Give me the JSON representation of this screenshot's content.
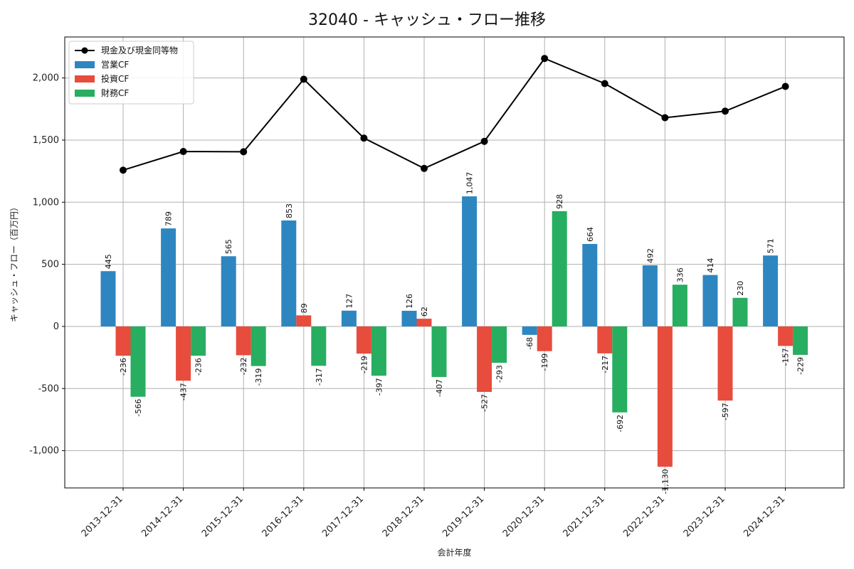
{
  "chart_data": {
    "type": "bar",
    "title": "32040 - キャッシュ・フロー推移",
    "xlabel": "会計年度",
    "ylabel": "キャッシュ・フロー（百万円）",
    "categories": [
      "2013-12-31",
      "2014-12-31",
      "2015-12-31",
      "2016-12-31",
      "2017-12-31",
      "2018-12-31",
      "2019-12-31",
      "2020-12-31",
      "2021-12-31",
      "2022-12-31",
      "2023-12-31",
      "2024-12-31"
    ],
    "series": [
      {
        "name": "営業CF",
        "kind": "bar",
        "color": "#2e86c1",
        "values": [
          445,
          789,
          565,
          853,
          127,
          126,
          1047,
          -68,
          664,
          492,
          414,
          571
        ],
        "labels": [
          "445",
          "789",
          "565",
          "853",
          "127",
          "126",
          "1,047",
          "-68",
          "664",
          "492",
          "414",
          "571"
        ]
      },
      {
        "name": "投資CF",
        "kind": "bar",
        "color": "#e74c3c",
        "values": [
          -236,
          -437,
          -232,
          89,
          -219,
          62,
          -527,
          -199,
          -217,
          -1130,
          -597,
          -157
        ],
        "labels": [
          "-236",
          "-437",
          "-232",
          "89",
          "-219",
          "62",
          "-527",
          "-199",
          "-217",
          "-1,130",
          "-597",
          "-157"
        ]
      },
      {
        "name": "財務CF",
        "kind": "bar",
        "color": "#27ae60",
        "values": [
          -566,
          -236,
          -319,
          -317,
          -397,
          -407,
          -293,
          928,
          -692,
          336,
          230,
          -229
        ],
        "labels": [
          "-566",
          "-236",
          "-319",
          "-317",
          "-397",
          "-407",
          "-293",
          "928",
          "-692",
          "336",
          "230",
          "-229"
        ]
      },
      {
        "name": "現金及び現金同等物",
        "kind": "line",
        "color": "#000000",
        "values": [
          1258,
          1408,
          1406,
          1990,
          1516,
          1272,
          1490,
          2157,
          1955,
          1680,
          1733,
          1932
        ]
      }
    ],
    "ylim": [
      -1300,
      2330
    ],
    "yticks": [
      -1000,
      -500,
      0,
      500,
      1000,
      1500,
      2000
    ],
    "ytick_labels": [
      "-1,000",
      "-500",
      "0",
      "500",
      "1,000",
      "1,500",
      "2,000"
    ],
    "grid": true,
    "legend": "top-left"
  }
}
